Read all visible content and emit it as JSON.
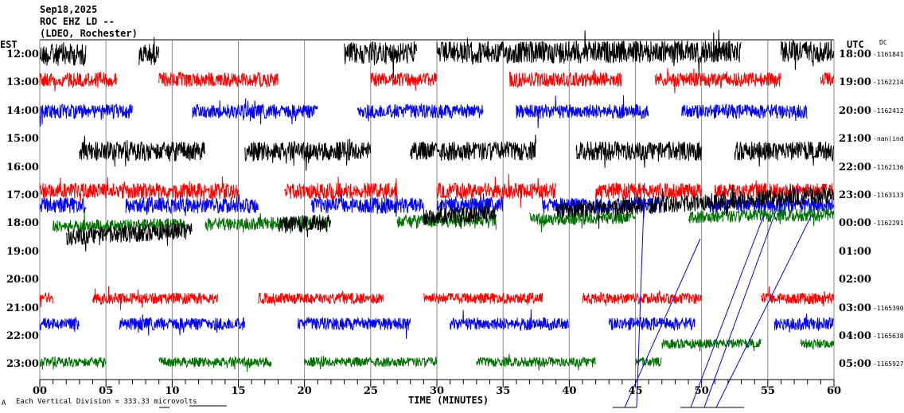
{
  "chart_data": {
    "type": "line",
    "title": "Sep18,2025",
    "station": "ROC EHZ LD --",
    "network": "(LDEO, Rochester)",
    "xlabel": "TIME (MINUTES)",
    "xlim": [
      0,
      60
    ],
    "x_ticks": [
      "00",
      "05",
      "10",
      "15",
      "20",
      "25",
      "30",
      "35",
      "40",
      "45",
      "50",
      "55",
      "60"
    ],
    "left_axis_title": "EST",
    "right_axis_title": "UTC",
    "dc_title": "DC",
    "rows": [
      {
        "est": "12:00",
        "utc": "18:00",
        "dc": "-1161841",
        "color": "#000000",
        "segments": [
          [
            0,
            3.5
          ],
          [
            7.5,
            9
          ],
          [
            23,
            28.5
          ],
          [
            30,
            53
          ],
          [
            56,
            60
          ]
        ]
      },
      {
        "est": "13:00",
        "utc": "19:00",
        "dc": "-1162214",
        "color": "#ff0000",
        "segments": [
          [
            0,
            5.8
          ],
          [
            9,
            18
          ],
          [
            25,
            30
          ],
          [
            35.5,
            44
          ],
          [
            46.5,
            56
          ],
          [
            59,
            60
          ]
        ]
      },
      {
        "est": "14:00",
        "utc": "20:00",
        "dc": "-1162412",
        "color": "#0000ff",
        "segments": [
          [
            0,
            7
          ],
          [
            11.5,
            21
          ],
          [
            24,
            33.5
          ],
          [
            36,
            46
          ],
          [
            48.5,
            58
          ]
        ]
      },
      {
        "est": "15:00",
        "utc": "21:00",
        "dc": "-nan(ind",
        "color": "#007000",
        "segments": []
      },
      {
        "est": "16:00",
        "utc": "22:00",
        "dc": "-1162136",
        "color": "#000000",
        "segments": [
          [
            3,
            12.5
          ],
          [
            15.5,
            25
          ],
          [
            28,
            37.5
          ],
          [
            40.5,
            50
          ],
          [
            52.5,
            60
          ]
        ]
      },
      {
        "est": "17:00",
        "utc": "23:00",
        "dc": "-1163133",
        "color": "#ff0000",
        "segments": [
          [
            0,
            15
          ],
          [
            18.5,
            27
          ],
          [
            30,
            39
          ],
          [
            42,
            50
          ],
          [
            51,
            60
          ]
        ]
      },
      {
        "est": "18:00",
        "utc": "00:00",
        "dc": "-1162291",
        "color": "#0000ff",
        "segments": [
          [
            0,
            3.5
          ],
          [
            6.5,
            16.5
          ],
          [
            20.5,
            29
          ],
          [
            30,
            35
          ],
          [
            38,
            47
          ],
          [
            50.5,
            60
          ]
        ]
      },
      {
        "est": "19:00",
        "utc": "01:00",
        "dc": "",
        "color": "#007000",
        "segments": [
          [
            1,
            11
          ],
          [
            12.5,
            22
          ],
          [
            27,
            34.5
          ],
          [
            37,
            45
          ],
          [
            49,
            60
          ]
        ]
      },
      {
        "est": "20:00",
        "utc": "02:00",
        "dc": "",
        "color": "#000000",
        "segments": [
          [
            2,
            11.5
          ],
          [
            18,
            22
          ],
          [
            29,
            34.5
          ],
          [
            39,
            60
          ]
        ]
      },
      {
        "est": "21:00",
        "utc": "03:00",
        "dc": "-1165390",
        "color": "#ff0000",
        "segments": [
          [
            0,
            1
          ],
          [
            4,
            13.5
          ],
          [
            16.5,
            26
          ],
          [
            29,
            38
          ],
          [
            41,
            50
          ],
          [
            54.5,
            60
          ]
        ]
      },
      {
        "est": "22:00",
        "utc": "04:00",
        "dc": "-1165638",
        "color": "#0000ff",
        "segments": [
          [
            0,
            3
          ],
          [
            6,
            15.5
          ],
          [
            19.5,
            28
          ],
          [
            31,
            40
          ],
          [
            43,
            49.5
          ],
          [
            55.5,
            60
          ]
        ]
      },
      {
        "est": "23:00",
        "utc": "05:00",
        "dc": "-1165927",
        "color": "#007000",
        "segments": [
          [
            0,
            5
          ],
          [
            9,
            17.5
          ],
          [
            20,
            30
          ],
          [
            33,
            42
          ],
          [
            45,
            47
          ],
          [
            47,
            54.5
          ],
          [
            57.5,
            60
          ]
        ]
      }
    ],
    "scale_note": "Each Vertical Division =  333.33 microvolts",
    "corner_mark": "A"
  }
}
